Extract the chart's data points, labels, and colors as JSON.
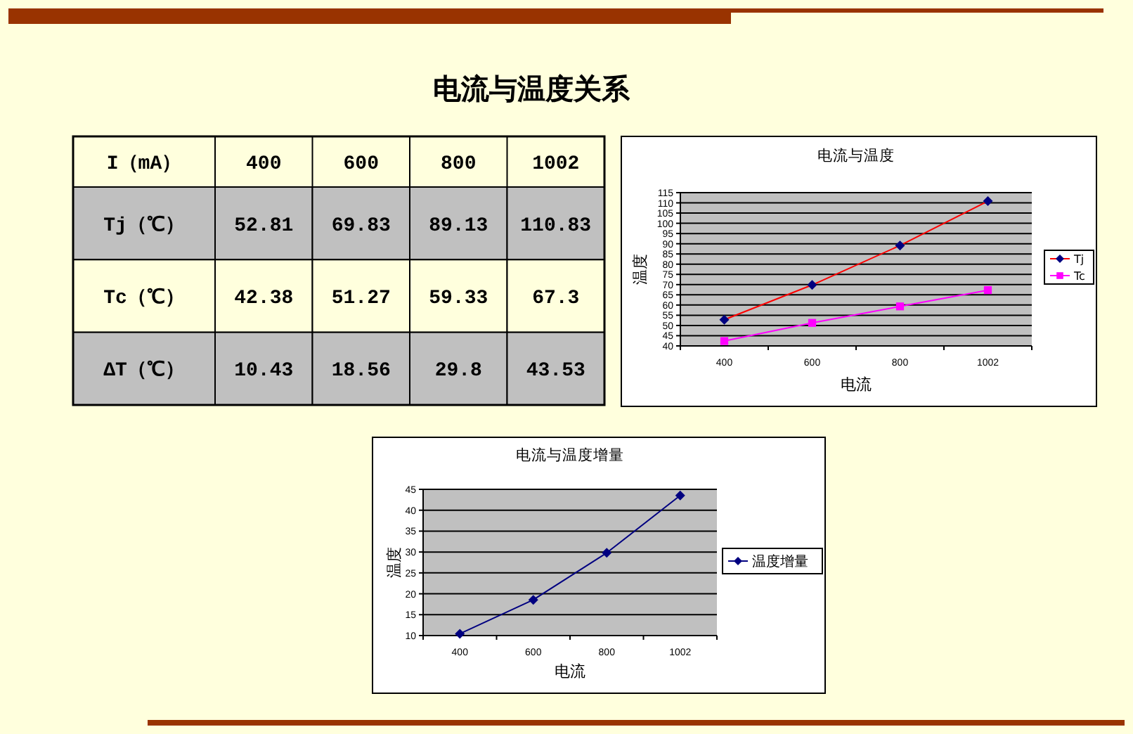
{
  "chart_data": [
    {
      "type": "heatmap",
      "title": "电流与温度关系",
      "xlabel": "I（mA）",
      "categories": [
        "400",
        "600",
        "800",
        "1002"
      ],
      "y_categories": [
        "Tj（℃）",
        "Tc（℃）",
        "ΔT（℃）"
      ],
      "cells": [
        [
          52.81,
          69.83,
          89.13,
          110.83
        ],
        [
          42.38,
          51.27,
          59.33,
          67.3
        ],
        [
          10.43,
          18.56,
          29.8,
          43.53
        ]
      ],
      "data_labels": true
    },
    {
      "type": "line",
      "title": "电流与温度",
      "xlabel": "电流",
      "ylabel": "温度",
      "categories": [
        "400",
        "600",
        "800",
        "1002"
      ],
      "series": [
        {
          "name": "Tj",
          "color": "#FF0000",
          "colors": [
            "#000080",
            "#000080",
            "#000080",
            "#000080"
          ],
          "marker": "diamond",
          "values": [
            52.81,
            69.83,
            89.13,
            110.83
          ]
        },
        {
          "name": "Tc",
          "color": "#FF00FF",
          "marker": "square",
          "values": [
            42.38,
            51.27,
            59.33,
            67.3
          ]
        }
      ],
      "ylim": [
        40,
        115
      ],
      "yticks": [
        40,
        45,
        50,
        55,
        60,
        65,
        70,
        75,
        80,
        85,
        90,
        95,
        100,
        105,
        110,
        115
      ],
      "grid": "y",
      "legend": "right"
    },
    {
      "type": "line",
      "title": "电流与温度增量",
      "xlabel": "电流",
      "ylabel": "温度",
      "categories": [
        "400",
        "600",
        "800",
        "1002"
      ],
      "series": [
        {
          "name": "温度增量",
          "color": "#000080",
          "marker": "diamond",
          "values": [
            10.43,
            18.56,
            29.8,
            43.53
          ]
        }
      ],
      "ylim": [
        10,
        45
      ],
      "yticks": [
        10,
        15,
        20,
        25,
        30,
        35,
        40,
        45
      ],
      "grid": "y",
      "legend": "right"
    }
  ]
}
